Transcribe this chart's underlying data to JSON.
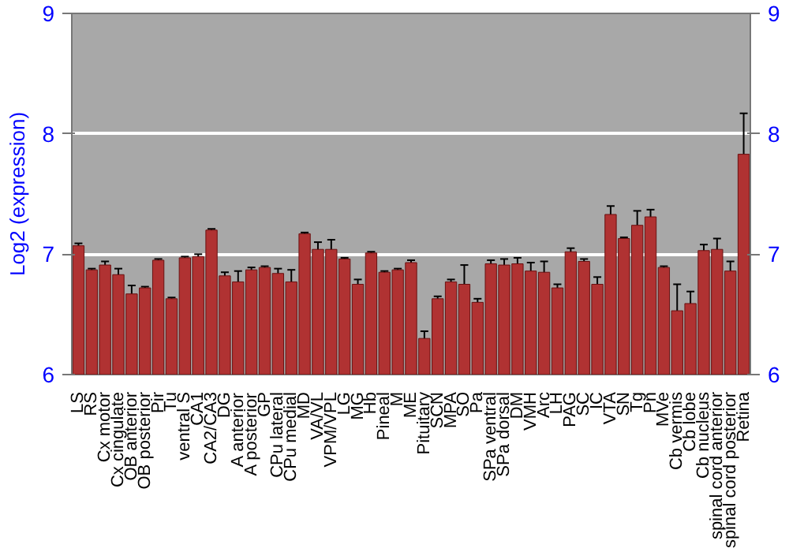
{
  "chart_data": {
    "type": "bar",
    "ylabel": "Log2 (expression)",
    "categories": [
      "LS",
      "RS",
      "Cx motor",
      "Cx cingulate",
      "OB anterior",
      "OB posterior",
      "Pir",
      "Tu",
      "ventral S",
      "CA1",
      "CA2/CA3",
      "DG",
      "A anterior",
      "A posterior",
      "GP",
      "CPu lateral",
      "CPu medial",
      "MD",
      "VA/VL",
      "VPM/VPL",
      "LG",
      "MG",
      "Hb",
      "Pineal",
      "M",
      "ME",
      "Pituitary",
      "SCN",
      "MPA",
      "SO",
      "Pa",
      "SPa ventral",
      "SPa dorsal",
      "DM",
      "VMH",
      "Arc",
      "LH",
      "PAG",
      "SC",
      "IC",
      "VTA",
      "SN",
      "Tg",
      "Pn",
      "MVe",
      "Cb vermis",
      "Cb lobe",
      "Cb nucleus",
      "spinal cord anterior",
      "spinal cord posterior",
      "Retina"
    ],
    "values": [
      7.07,
      6.87,
      6.91,
      6.83,
      6.67,
      6.72,
      6.95,
      6.63,
      6.97,
      6.98,
      7.2,
      6.82,
      6.77,
      6.87,
      6.89,
      6.84,
      6.77,
      7.17,
      7.04,
      7.04,
      6.96,
      6.75,
      7.01,
      6.85,
      6.87,
      6.93,
      6.3,
      6.63,
      6.77,
      6.75,
      6.6,
      6.92,
      6.91,
      6.92,
      6.86,
      6.85,
      6.72,
      7.02,
      6.94,
      6.75,
      7.33,
      7.13,
      7.24,
      7.31,
      6.89,
      6.53,
      6.59,
      7.03,
      7.04,
      6.86,
      7.83
    ],
    "errors": [
      0.02,
      0.01,
      0.03,
      0.05,
      0.07,
      0.01,
      0.01,
      0.01,
      0.01,
      0.02,
      0.01,
      0.03,
      0.09,
      0.02,
      0.01,
      0.04,
      0.1,
      0.01,
      0.06,
      0.08,
      0.01,
      0.04,
      0.01,
      0.01,
      0.01,
      0.02,
      0.06,
      0.02,
      0.02,
      0.16,
      0.03,
      0.03,
      0.05,
      0.05,
      0.07,
      0.09,
      0.03,
      0.03,
      0.02,
      0.06,
      0.07,
      0.01,
      0.12,
      0.06,
      0.01,
      0.22,
      0.1,
      0.05,
      0.09,
      0.08,
      0.34
    ],
    "color": "#b03232",
    "ylim": [
      6,
      9
    ],
    "yticks": [
      6,
      7,
      8,
      9
    ],
    "y2lim": [
      6,
      9
    ],
    "y2ticks": [
      6,
      7,
      8,
      9
    ],
    "grid": "y"
  }
}
